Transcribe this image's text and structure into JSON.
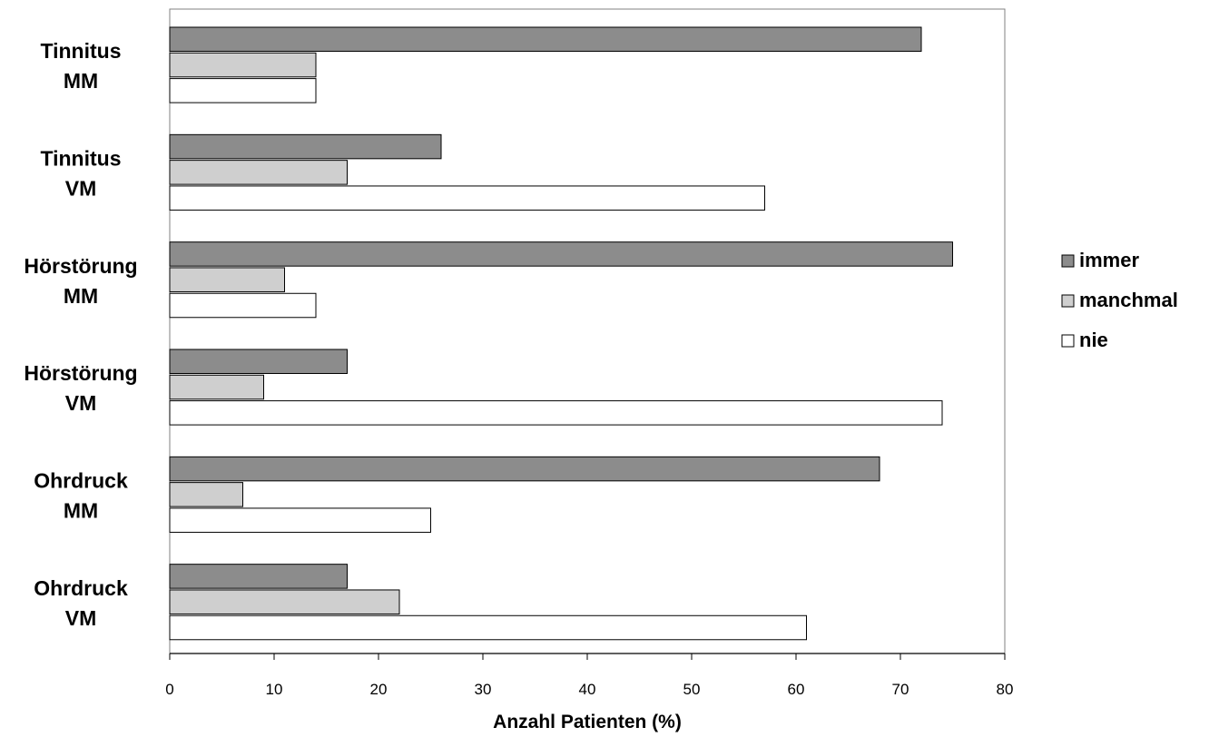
{
  "chart_data": {
    "type": "bar",
    "orientation": "horizontal",
    "categories": [
      [
        "Tinnitus",
        "MM"
      ],
      [
        "Tinnitus",
        "VM"
      ],
      [
        "Hörstörung",
        "MM"
      ],
      [
        "Hörstörung",
        "VM"
      ],
      [
        "Ohrdruck",
        "MM"
      ],
      [
        "Ohrdruck",
        "VM"
      ]
    ],
    "series": [
      {
        "name": "immer",
        "color": "#8c8c8c",
        "values": [
          72,
          26,
          75,
          17,
          68,
          17
        ]
      },
      {
        "name": "manchmal",
        "color": "#cfcfcf",
        "values": [
          14,
          17,
          11,
          9,
          7,
          22
        ]
      },
      {
        "name": "nie",
        "color": "#ffffff",
        "values": [
          14,
          57,
          14,
          74,
          25,
          61
        ]
      }
    ],
    "xlabel": "Anzahl Patienten (%)",
    "xlim": [
      0,
      80
    ],
    "xticks": [
      "0",
      "10",
      "20",
      "30",
      "40",
      "50",
      "60",
      "70",
      "80"
    ],
    "grid": false,
    "legend_position": "right"
  }
}
